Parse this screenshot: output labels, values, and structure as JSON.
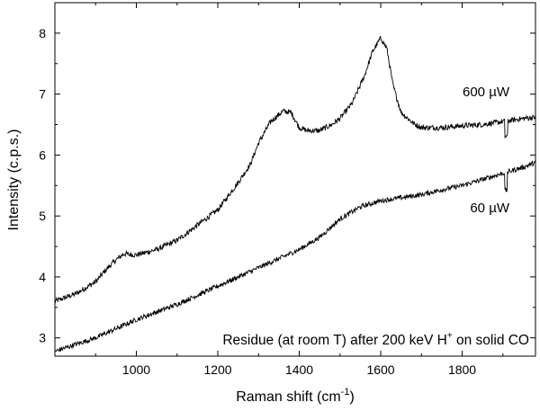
{
  "chart_data": {
    "type": "line",
    "title": "",
    "xlabel": "Raman shift (cm",
    "xlabel_sup": "-1",
    "xlabel_end": ")",
    "ylabel": "Intensity (c.p.s.)",
    "xlim": [
      800,
      1980
    ],
    "ylim": [
      2.7,
      8.5
    ],
    "x_ticks": [
      1000,
      1200,
      1400,
      1600,
      1800
    ],
    "y_ticks": [
      3,
      4,
      5,
      6,
      7,
      8
    ],
    "annotation": {
      "pre": "Residue (at room T) after 200 keV H",
      "sup": "+",
      "post": " on solid CO"
    },
    "series": [
      {
        "name": "600 µW",
        "x": [
          800,
          850,
          900,
          930,
          950,
          970,
          1000,
          1050,
          1100,
          1150,
          1200,
          1250,
          1280,
          1300,
          1330,
          1360,
          1380,
          1400,
          1420,
          1450,
          1480,
          1500,
          1530,
          1560,
          1580,
          1600,
          1615,
          1630,
          1650,
          1680,
          1700,
          1750,
          1800,
          1850,
          1900,
          1950,
          1980
        ],
        "y": [
          3.6,
          3.72,
          3.92,
          4.15,
          4.28,
          4.38,
          4.36,
          4.45,
          4.6,
          4.85,
          5.1,
          5.55,
          5.85,
          6.2,
          6.55,
          6.72,
          6.7,
          6.45,
          6.4,
          6.4,
          6.5,
          6.6,
          6.85,
          7.3,
          7.7,
          7.92,
          7.75,
          7.15,
          6.7,
          6.52,
          6.45,
          6.45,
          6.48,
          6.5,
          6.55,
          6.6,
          6.62
        ],
        "noise": 0.045
      },
      {
        "name": "60 µW",
        "x": [
          800,
          900,
          1000,
          1100,
          1200,
          1300,
          1400,
          1450,
          1500,
          1550,
          1600,
          1650,
          1700,
          1750,
          1800,
          1850,
          1900,
          1950,
          1980
        ],
        "y": [
          2.78,
          3.0,
          3.3,
          3.55,
          3.85,
          4.15,
          4.45,
          4.65,
          4.95,
          5.15,
          5.25,
          5.3,
          5.35,
          5.43,
          5.5,
          5.6,
          5.7,
          5.8,
          5.88
        ],
        "noise": 0.04
      }
    ]
  }
}
